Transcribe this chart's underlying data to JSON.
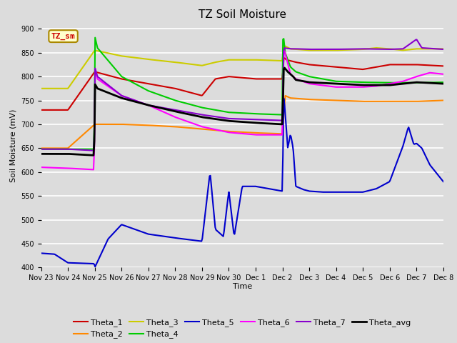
{
  "title": "TZ Soil Moisture",
  "xlabel": "Time",
  "ylabel": "Soil Moisture (mV)",
  "ylim": [
    400,
    910
  ],
  "yticks": [
    400,
    450,
    500,
    550,
    600,
    650,
    700,
    750,
    800,
    850,
    900
  ],
  "bg_color": "#dcdcdc",
  "legend_label": "TZ_sm",
  "series": {
    "Theta_1": {
      "color": "#cc0000",
      "lw": 1.5
    },
    "Theta_2": {
      "color": "#ff8800",
      "lw": 1.5
    },
    "Theta_3": {
      "color": "#cccc00",
      "lw": 1.5
    },
    "Theta_4": {
      "color": "#00cc00",
      "lw": 1.5
    },
    "Theta_5": {
      "color": "#0000cc",
      "lw": 1.5
    },
    "Theta_6": {
      "color": "#ff00ff",
      "lw": 1.5
    },
    "Theta_7": {
      "color": "#8800cc",
      "lw": 1.5
    },
    "Theta_avg": {
      "color": "#000000",
      "lw": 2.0
    }
  },
  "x_tick_labels": [
    "Nov 23",
    "Nov 24",
    "Nov 25",
    "Nov 26",
    "Nov 27",
    "Nov 28",
    "Nov 29",
    "Nov 30",
    "Dec 1",
    "Dec 2",
    "Dec 3",
    "Dec 4",
    "Dec 5",
    "Dec 6",
    "Dec 7",
    "Dec 8"
  ],
  "num_points": 500
}
